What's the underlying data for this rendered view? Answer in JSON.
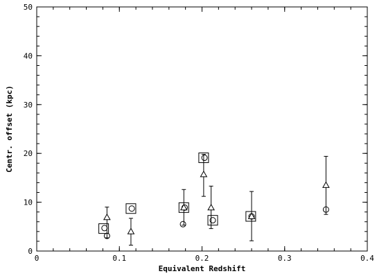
{
  "chart_data": {
    "type": "scatter",
    "xlabel": "Equivalent Redshift",
    "ylabel": "Centr. offset (kpc)",
    "xlim": [
      0,
      0.4
    ],
    "ylim": [
      0,
      50
    ],
    "xticks": [
      0,
      0.1,
      0.2,
      0.3,
      0.4
    ],
    "xtick_labels": [
      "0",
      "0.1",
      "0.2",
      "0.3",
      "0.4"
    ],
    "yticks": [
      0,
      10,
      20,
      30,
      40,
      50
    ],
    "ytick_labels": [
      "0",
      "10",
      "20",
      "30",
      "40",
      "50"
    ],
    "grid": false,
    "legend": "none",
    "series": [
      {
        "marker": "circle",
        "points": [
          {
            "x": 0.082,
            "y": 4.7
          },
          {
            "x": 0.085,
            "y": 3.1
          },
          {
            "x": 0.115,
            "y": 8.7
          },
          {
            "x": 0.177,
            "y": 5.5
          },
          {
            "x": 0.179,
            "y": 8.9
          },
          {
            "x": 0.203,
            "y": 19.1
          },
          {
            "x": 0.213,
            "y": 6.3
          },
          {
            "x": 0.26,
            "y": 7.1
          },
          {
            "x": 0.35,
            "y": 8.5
          }
        ]
      },
      {
        "marker": "triangle",
        "points": [
          {
            "x": 0.085,
            "y": 6.9,
            "ylow": 2.7,
            "yhigh": 9.0
          },
          {
            "x": 0.114,
            "y": 4.0,
            "ylow": 1.2,
            "yhigh": 6.7
          },
          {
            "x": 0.178,
            "y": 8.9,
            "ylow": 5.3,
            "yhigh": 12.6
          },
          {
            "x": 0.202,
            "y": 15.7,
            "ylow": 11.2,
            "yhigh": 19.8
          },
          {
            "x": 0.211,
            "y": 8.9,
            "ylow": 4.6,
            "yhigh": 13.3
          },
          {
            "x": 0.26,
            "y": 7.1,
            "ylow": 2.1,
            "yhigh": 12.2
          },
          {
            "x": 0.35,
            "y": 13.5,
            "ylow": 7.5,
            "yhigh": 19.4
          }
        ]
      },
      {
        "marker": "square",
        "points": [
          {
            "x": 0.081,
            "y": 4.6
          },
          {
            "x": 0.114,
            "y": 8.7
          },
          {
            "x": 0.178,
            "y": 8.9
          },
          {
            "x": 0.202,
            "y": 19.1
          },
          {
            "x": 0.213,
            "y": 6.3
          },
          {
            "x": 0.259,
            "y": 7.1
          }
        ]
      }
    ]
  }
}
